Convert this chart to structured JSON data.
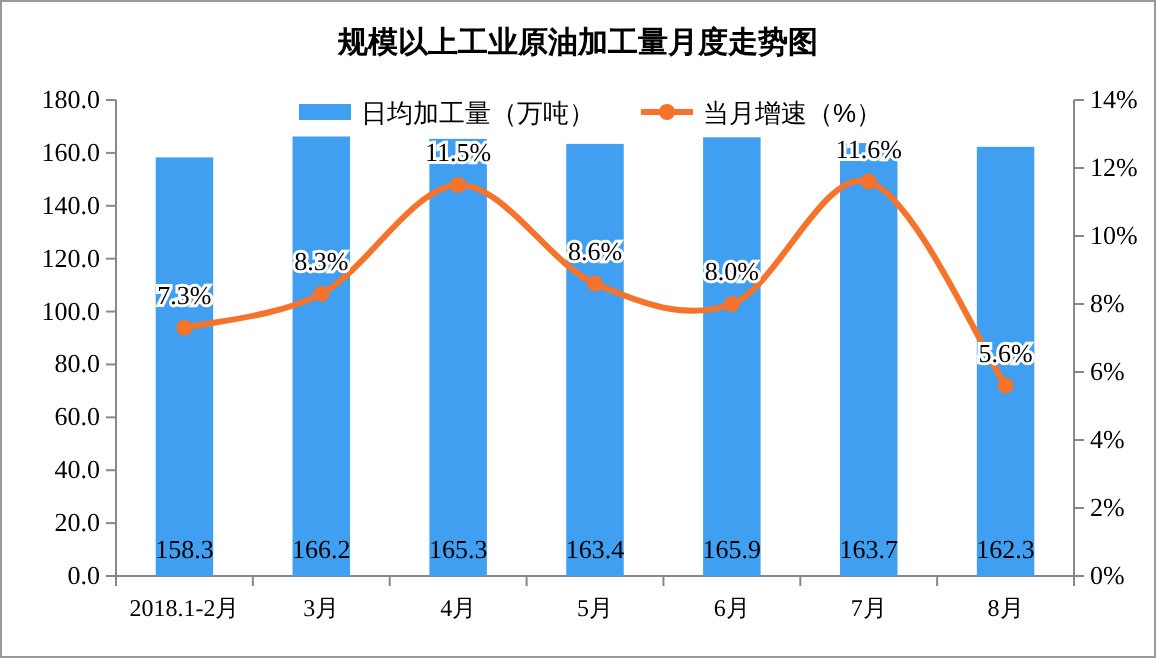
{
  "chart_data": {
    "type": "bar",
    "title": "规模以上工业原油加工量月度走势图",
    "categories": [
      "2018.1-2月",
      "3月",
      "4月",
      "5月",
      "6月",
      "7月",
      "8月"
    ],
    "series": [
      {
        "name": "日均加工量（万吨）",
        "color": "#409ff0",
        "values": [
          158.3,
          166.2,
          165.3,
          163.4,
          165.9,
          163.7,
          162.3
        ],
        "value_labels": [
          "158.3",
          "166.2",
          "165.3",
          "163.4",
          "165.9",
          "163.7",
          "162.3"
        ]
      },
      {
        "name": "当月增速（%）",
        "type": "line",
        "axis": "y2",
        "color": "#f5732a",
        "values": [
          7.3,
          8.3,
          11.5,
          8.6,
          8.0,
          11.6,
          5.6
        ],
        "value_labels": [
          "7.3%",
          "8.3%",
          "11.5%",
          "8.6%",
          "8.0%",
          "11.6%",
          "5.6%"
        ]
      }
    ],
    "ylim": [
      0,
      180
    ],
    "yticks": [
      {
        "value": 0,
        "label": "0.0"
      },
      {
        "value": 20,
        "label": "20.0"
      },
      {
        "value": 40,
        "label": "40.0"
      },
      {
        "value": 60,
        "label": "60.0"
      },
      {
        "value": 80,
        "label": "80.0"
      },
      {
        "value": 100,
        "label": "100.0"
      },
      {
        "value": 120,
        "label": "120.0"
      },
      {
        "value": 140,
        "label": "140.0"
      },
      {
        "value": 160,
        "label": "160.0"
      },
      {
        "value": 180,
        "label": "180.0"
      }
    ],
    "y2lim": [
      0,
      14
    ],
    "y2ticks": [
      {
        "value": 0,
        "label": "0%"
      },
      {
        "value": 2,
        "label": "2%"
      },
      {
        "value": 4,
        "label": "4%"
      },
      {
        "value": 6,
        "label": "6%"
      },
      {
        "value": 8,
        "label": "8%"
      },
      {
        "value": 10,
        "label": "10%"
      },
      {
        "value": 12,
        "label": "12%"
      },
      {
        "value": 14,
        "label": "14%"
      }
    ],
    "marker": "circle",
    "line_style": "solid",
    "legend": "top",
    "grid": false
  }
}
